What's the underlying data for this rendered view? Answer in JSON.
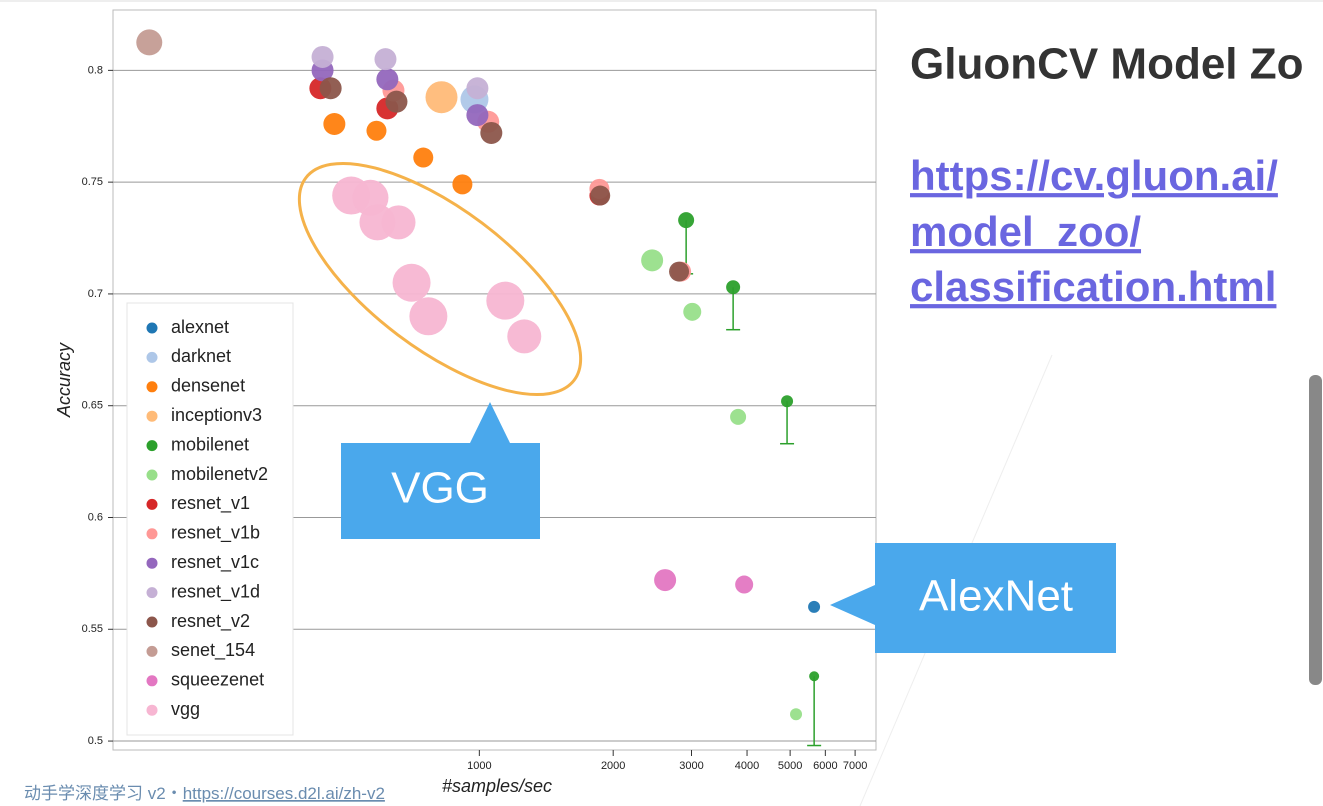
{
  "chart_data": {
    "type": "scatter",
    "x_label": "#samples/sec",
    "y_label": "Accuracy",
    "xscale": "log",
    "grid": true,
    "legend": "upper left",
    "xlim": [
      150,
      7800
    ],
    "ylim": [
      0.496,
      0.827
    ],
    "xticks": [
      1000,
      2000,
      3000,
      4000,
      5000,
      6000,
      7000
    ],
    "yticks": [
      0.5,
      0.55,
      0.6,
      0.65,
      0.7,
      0.75,
      0.8
    ],
    "series": [
      {
        "name": "alexnet",
        "color": "#1f77b4",
        "x": [
          5660
        ],
        "values": [
          0.56
        ],
        "sizes": [
          6
        ]
      },
      {
        "name": "darknet",
        "color": "#aec7e8",
        "x": [
          975
        ],
        "values": [
          0.787
        ],
        "sizes": [
          14
        ]
      },
      {
        "name": "densenet",
        "color": "#ff7f0e",
        "x": [
          472,
          587,
          748,
          916
        ],
        "values": [
          0.776,
          0.773,
          0.761,
          0.749
        ],
        "sizes": [
          11,
          10,
          10,
          10
        ]
      },
      {
        "name": "inceptionv3",
        "color": "#ffbb78",
        "x": [
          822
        ],
        "values": [
          0.788
        ],
        "sizes": [
          16
        ]
      },
      {
        "name": "mobilenet",
        "color": "#2ca02c",
        "x": [
          2918,
          3722,
          4921,
          5662
        ],
        "values": [
          0.733,
          0.703,
          0.652,
          0.529
        ],
        "errors": [
          0.024,
          0.019,
          0.019,
          0.031
        ],
        "sizes": [
          8,
          7,
          6,
          5
        ]
      },
      {
        "name": "mobilenetv2",
        "color": "#98df8a",
        "x": [
          2447,
          3012,
          3819,
          5155
        ],
        "values": [
          0.715,
          0.692,
          0.645,
          0.512
        ],
        "sizes": [
          11,
          9,
          8,
          6
        ]
      },
      {
        "name": "resnet_v1",
        "color": "#d62728",
        "x": [
          439,
          621,
          1862
        ],
        "values": [
          0.792,
          0.783,
          0.744
        ],
        "sizes": [
          11,
          11,
          10
        ]
      },
      {
        "name": "resnet_v1b",
        "color": "#ff9896",
        "x": [
          641,
          1047,
          1862,
          2843
        ],
        "values": [
          0.791,
          0.777,
          0.747,
          0.71
        ],
        "sizes": [
          11,
          11,
          10,
          10
        ]
      },
      {
        "name": "resnet_v1c",
        "color": "#9467bd",
        "x": [
          444,
          621,
          990
        ],
        "values": [
          0.8,
          0.796,
          0.78
        ],
        "sizes": [
          11,
          11,
          11
        ]
      },
      {
        "name": "resnet_v1d",
        "color": "#c5b0d5",
        "x": [
          444,
          615,
          990
        ],
        "values": [
          0.806,
          0.805,
          0.792
        ],
        "sizes": [
          11,
          11,
          11
        ]
      },
      {
        "name": "resnet_v2",
        "color": "#8c564b",
        "x": [
          463,
          651,
          1064,
          1870,
          2813
        ],
        "values": [
          0.792,
          0.786,
          0.772,
          0.744,
          0.71
        ],
        "sizes": [
          11,
          11,
          11,
          10,
          10
        ]
      },
      {
        "name": "senet_154",
        "color": "#c49c94",
        "x": [
          181
        ],
        "values": [
          0.8125
        ],
        "sizes": [
          13
        ]
      },
      {
        "name": "squeezenet",
        "color": "#e377c2",
        "x": [
          2617,
          3941
        ],
        "values": [
          0.572,
          0.57
        ],
        "sizes": [
          11,
          9
        ]
      },
      {
        "name": "vgg",
        "color": "#f7b6d2",
        "x": [
          515,
          569,
          590,
          658,
          704,
          768,
          1144,
          1262
        ],
        "values": [
          0.744,
          0.743,
          0.732,
          0.732,
          0.705,
          0.69,
          0.697,
          0.681
        ],
        "sizes": [
          19,
          18,
          18,
          17,
          19,
          19,
          19,
          17
        ]
      }
    ]
  },
  "slide": {
    "title": "GluonCV Model Zoo",
    "link": [
      "https://cv.gluon.ai/",
      "model_zoo/",
      "classification.html"
    ],
    "callouts": [
      "VGG",
      "AlexNet"
    ],
    "footer_text": "动手学深度学习 v2・",
    "footer_link": "https://courses.d2l.ai/zh-v2"
  }
}
